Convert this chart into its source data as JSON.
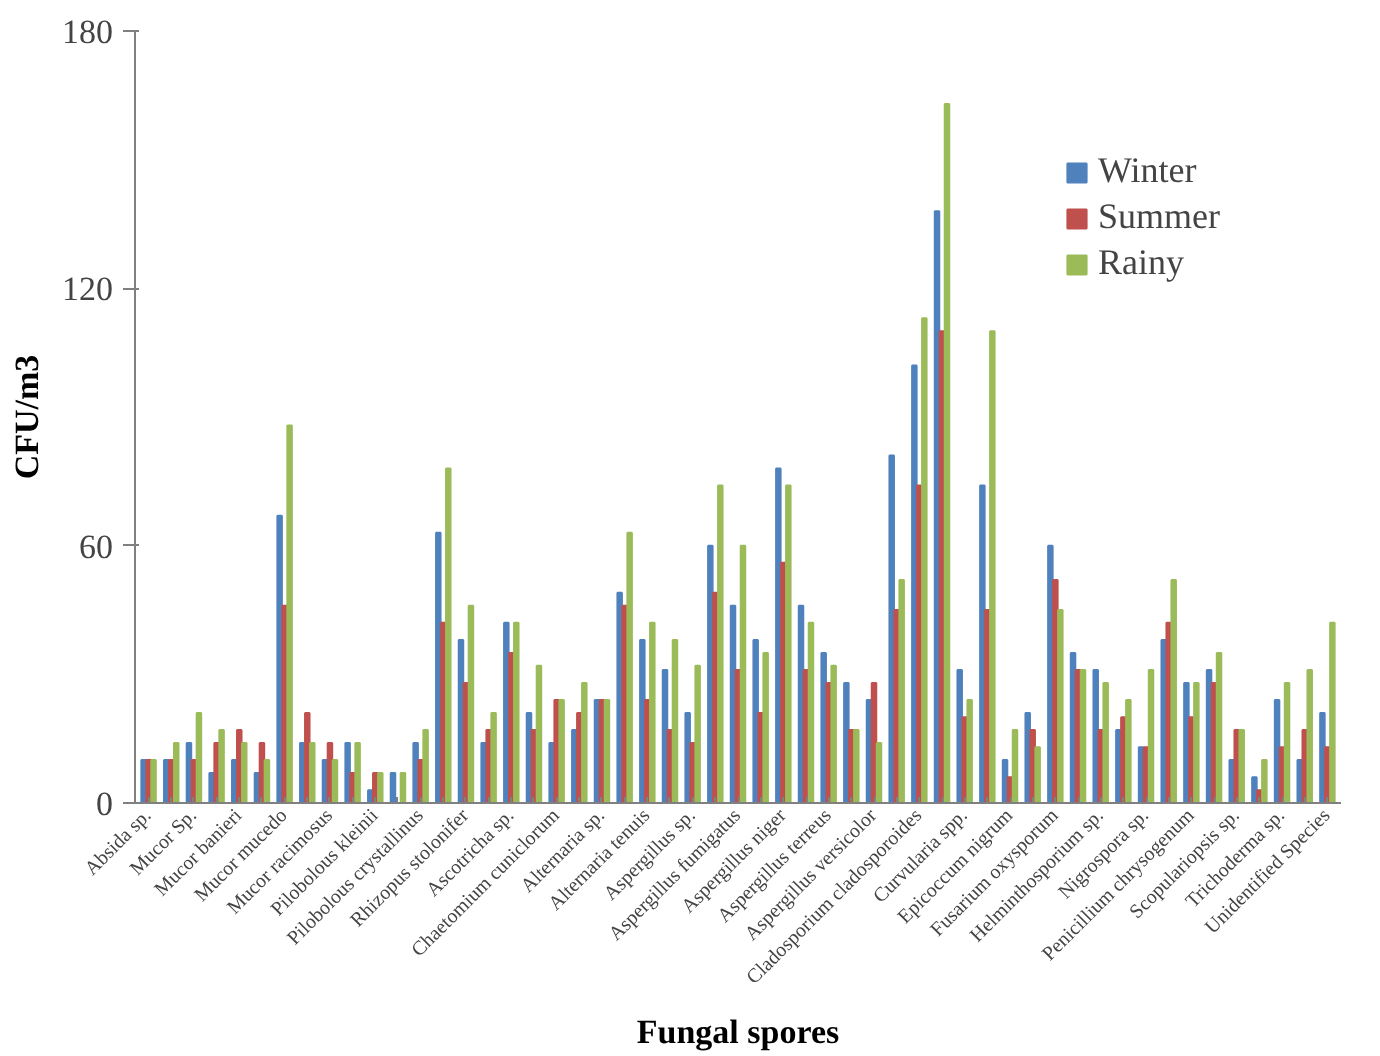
{
  "chart_data": {
    "type": "bar",
    "xlabel": "Fungal spores",
    "ylabel": "CFU/m3",
    "categories": [
      "Absida sp.",
      null,
      "Mucor Sp.",
      null,
      "Mucor banieri",
      null,
      "Mucor mucedo",
      null,
      "Mucor racimosus",
      null,
      "Pilobolous kleinii",
      null,
      "Pilobolous crystallinus",
      null,
      "Rhizopus stolonifer",
      null,
      "Ascotricha sp.",
      null,
      "Chaetomium cuniclorum",
      null,
      "Alternaria sp.",
      null,
      "Alternaria tenuis",
      null,
      "Aspergillus sp.",
      null,
      "Aspergillus fumigatus",
      null,
      "Aspergillus niger",
      null,
      "Aspergillus terreus",
      null,
      "Aspergillus versicolor",
      null,
      "Cladosporium cladosporoides",
      null,
      "Curvularia spp.",
      null,
      "Epicoccum nigrum",
      null,
      "Fusarium oxysporum",
      null,
      "Helminthosporium sp.",
      null,
      "Nigrospora sp.",
      null,
      "Penicillium chrysogenum",
      null,
      "Scopulariopsis sp.",
      null,
      "Trichoderma sp.",
      null,
      "Unidentified Species"
    ],
    "series": [
      {
        "name": "Winter",
        "color": "#4f81bd",
        "values": [
          10,
          10,
          14,
          7,
          10,
          7,
          67,
          14,
          10,
          14,
          3,
          7,
          14,
          63,
          38,
          14,
          42,
          21,
          14,
          17,
          24,
          49,
          38,
          31,
          21,
          60,
          46,
          38,
          78,
          46,
          35,
          28,
          24,
          81,
          102,
          138,
          31,
          74,
          10,
          21,
          60,
          35,
          31,
          17,
          13,
          38,
          28,
          31,
          10,
          6,
          24,
          10,
          21
        ]
      },
      {
        "name": "Summer",
        "color": "#c0504d",
        "values": [
          10,
          10,
          10,
          14,
          17,
          14,
          46,
          21,
          14,
          7,
          7,
          0,
          10,
          42,
          28,
          17,
          35,
          17,
          24,
          21,
          24,
          46,
          24,
          17,
          14,
          49,
          31,
          21,
          56,
          31,
          28,
          17,
          28,
          45,
          74,
          110,
          20,
          45,
          6,
          17,
          52,
          31,
          17,
          20,
          13,
          42,
          20,
          28,
          17,
          3,
          13,
          17,
          13
        ]
      },
      {
        "name": "Rainy",
        "color": "#9bbb59",
        "values": [
          10,
          14,
          21,
          17,
          14,
          10,
          88,
          14,
          10,
          14,
          7,
          7,
          17,
          78,
          46,
          21,
          42,
          32,
          24,
          28,
          24,
          63,
          42,
          38,
          32,
          74,
          60,
          35,
          74,
          42,
          32,
          17,
          14,
          52,
          113,
          163,
          24,
          110,
          17,
          13,
          45,
          31,
          28,
          24,
          31,
          52,
          28,
          35,
          17,
          10,
          28,
          31,
          42
        ]
      }
    ],
    "ylim": [
      0,
      180
    ],
    "yticks": [
      0,
      60,
      120,
      180
    ],
    "grid": false,
    "legend": "top right"
  }
}
